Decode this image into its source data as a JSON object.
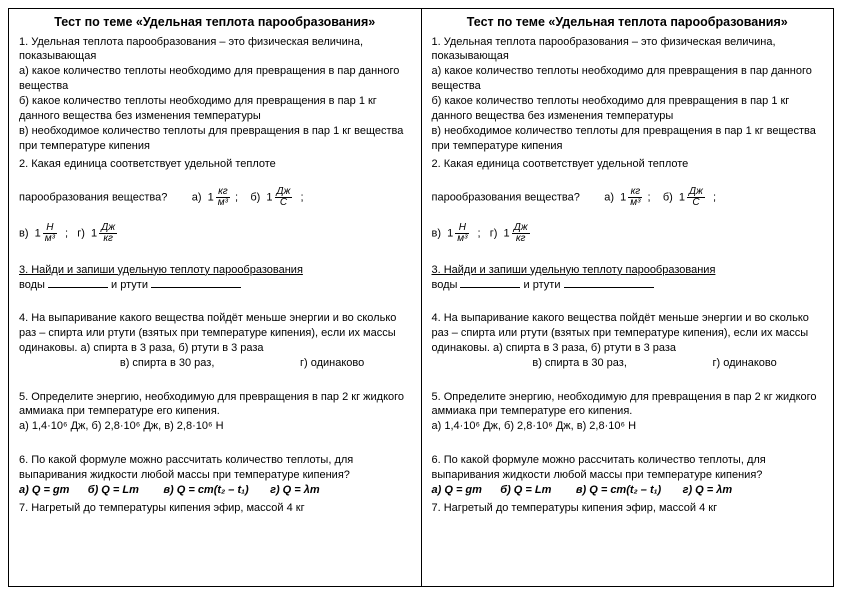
{
  "title": "Тест по теме «Удельная теплота парообразования»",
  "q1": {
    "stem": "1. Удельная теплота парообразования – это физическая величина, показывающая",
    "a": "а) какое количество теплоты необходимо для превращения в пар данного вещества",
    "b": "б) какое количество теплоты необходимо для превращения в пар 1 кг данного вещества без изменения температуры",
    "c": "в) необходимое количество теплоты для превращения в пар 1 кг  вещества при температуре кипения"
  },
  "q2": {
    "stem": "2. Какая единица соответствует удельной теплоте",
    "stem2": "парообразования вещества?",
    "opts": {
      "a": "а)",
      "b": "б)",
      "c": "в)",
      "d": "г)"
    },
    "frac1": {
      "num": "кг",
      "den": "м³"
    },
    "frac2": {
      "num": "Дж",
      "den": "С"
    },
    "frac3": {
      "num": "Н",
      "den": "м³"
    },
    "frac4": {
      "num": "Дж",
      "den": "кг"
    }
  },
  "q3": {
    "stem": "3. Найди и запиши удельную теплоту парообразования",
    "part1": "воды ",
    "part2": " и ртути "
  },
  "q4": {
    "stem": "4. На выпаривание какого вещества пойдёт меньше энергии и во сколько раз – спирта или ртути (взятых при температуре кипения), если их массы одинаковы.        а) спирта в 3 раза,                           б) ртути в 3 раза",
    "line3": "                                 в) спирта в 30 раз,                            г) одинаково"
  },
  "q5": {
    "stem": "5. Определите энергию, необходимую для превращения в пар 2 кг жидкого аммиака при температуре его кипения.",
    "opts": "а) 1,4·10⁶ Дж,       б) 2,8·10⁶ Дж,        в) 2,8·10⁶ Н"
  },
  "q6": {
    "stem": "6. По какой формуле можно рассчитать количество теплоты, для выпаривания жидкости любой массы при температуре кипения?",
    "a": "а) ",
    "fa": "Q = gm",
    "b": "б) ",
    "fb": "Q = Lm",
    "c": "в) ",
    "fc": "Q = cm(t₂ – t₁)",
    "d": "г) ",
    "fd": "Q = λm"
  },
  "q7": {
    "stem": "7. Нагретый до температуры кипения эфир, массой 4 кг"
  }
}
